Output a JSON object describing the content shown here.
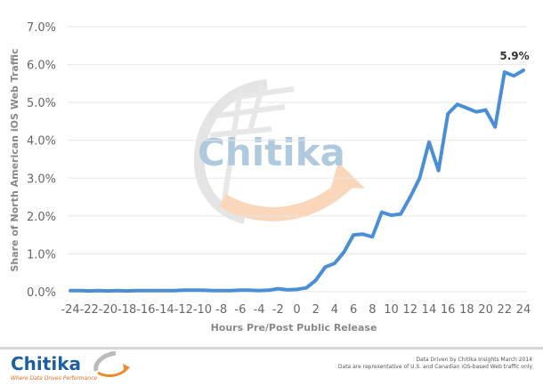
{
  "chart_data": {
    "type": "line",
    "title": "",
    "xlabel": "Hours Pre/Post Public Release",
    "ylabel": "Share of North American iOS Web Traffic",
    "ylim": [
      0,
      7
    ],
    "grid": true,
    "y_ticks": [
      "0.0%",
      "1.0%",
      "2.0%",
      "3.0%",
      "4.0%",
      "5.0%",
      "6.0%",
      "7.0%"
    ],
    "x_ticks": [
      "-24",
      "-22",
      "-20",
      "-18",
      "-16",
      "-14",
      "-12",
      "-10",
      "-8",
      "-6",
      "-4",
      "-2",
      "0",
      "2",
      "4",
      "6",
      "8",
      "10",
      "12",
      "14",
      "16",
      "18",
      "20",
      "22",
      "24"
    ],
    "x": [
      -24,
      -23,
      -22,
      -21,
      -20,
      -19,
      -18,
      -17,
      -16,
      -15,
      -14,
      -13,
      -12,
      -11,
      -10,
      -9,
      -8,
      -7,
      -6,
      -5,
      -4,
      -3,
      -2,
      -1,
      0,
      1,
      2,
      3,
      4,
      5,
      6,
      7,
      8,
      9,
      10,
      11,
      12,
      13,
      14,
      15,
      16,
      17,
      18,
      19,
      20,
      21,
      22,
      23,
      24
    ],
    "series": [
      {
        "name": "Share of North American iOS Web Traffic",
        "color": "#4a8fd6",
        "values": [
          0.03,
          0.03,
          0.02,
          0.03,
          0.02,
          0.03,
          0.02,
          0.03,
          0.03,
          0.03,
          0.03,
          0.03,
          0.04,
          0.04,
          0.04,
          0.03,
          0.03,
          0.03,
          0.04,
          0.04,
          0.03,
          0.04,
          0.08,
          0.05,
          0.06,
          0.1,
          0.3,
          0.65,
          0.75,
          1.05,
          1.5,
          1.52,
          1.45,
          2.1,
          2.02,
          2.05,
          2.5,
          3.0,
          3.95,
          3.2,
          4.7,
          4.95,
          4.85,
          4.75,
          4.8,
          4.35,
          5.8,
          5.7,
          5.85
        ]
      }
    ],
    "annotations": [
      {
        "x": 24,
        "label": "5.9%"
      }
    ],
    "legend": "none"
  },
  "watermark": {
    "text": "Chitika"
  },
  "footer": {
    "logo_text": "Chitika",
    "tagline": "Where Data Drives Performance",
    "credit_line1": "Data Driven by Chitika Insights March 2014",
    "credit_line2": "Data are representative of U.S. and Canadian iOS-based Web traffic only"
  },
  "colors": {
    "line": "#4a8fd6",
    "grid": "#e6e6e6",
    "brand_blue": "#1d5fa0",
    "brand_orange": "#f08a2c"
  }
}
